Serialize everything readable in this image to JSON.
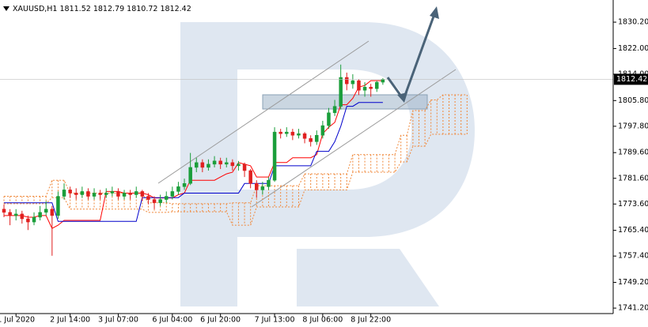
{
  "chart_data": {
    "type": "candlestick",
    "title": "XAUUSD,H1",
    "xlim": [
      -0.66,
      101.3
    ],
    "ylim": [
      1739.5,
      1837.1
    ],
    "yticks": [
      {
        "value": 1830.2,
        "label": "1830.20"
      },
      {
        "value": 1822.0,
        "label": "1822.00"
      },
      {
        "value": 1814.0,
        "label": "1814.00"
      },
      {
        "value": 1805.8,
        "label": "1805.80"
      },
      {
        "value": 1797.8,
        "label": "1797.80"
      },
      {
        "value": 1789.6,
        "label": "1789.60"
      },
      {
        "value": 1781.6,
        "label": "1781.60"
      },
      {
        "value": 1773.6,
        "label": "1773.60"
      },
      {
        "value": 1765.4,
        "label": "1765.40"
      },
      {
        "value": 1757.4,
        "label": "1757.40"
      },
      {
        "value": 1749.2,
        "label": "1749.20"
      },
      {
        "value": 1741.2,
        "label": "1741.20"
      }
    ],
    "xticks": [
      {
        "value": 2,
        "label": "1 Jul 2020"
      },
      {
        "value": 11,
        "label": "2 Jul 14:00"
      },
      {
        "value": 19,
        "label": "3 Jul 07:00"
      },
      {
        "value": 28,
        "label": "6 Jul 04:00"
      },
      {
        "value": 36,
        "label": "6 Jul 20:00"
      },
      {
        "value": 45,
        "label": "7 Jul 13:00"
      },
      {
        "value": 53,
        "label": "8 Jul 06:00"
      },
      {
        "value": 61,
        "label": "8 Jul 22:00"
      }
    ],
    "up_color": "#1a9e3a",
    "down_color": "#e02020",
    "open": [
      1772,
      1771,
      1770,
      1770.5,
      1769,
      1768,
      1769.5,
      1771,
      1772,
      1770,
      1776,
      1778,
      1777,
      1776.5,
      1777.5,
      1776,
      1777,
      1776.5,
      1777,
      1777.5,
      1776,
      1777,
      1776.5,
      1777.5,
      1776,
      1775,
      1774,
      1775,
      1776,
      1777.5,
      1779,
      1780,
      1785,
      1786.5,
      1785,
      1786,
      1787,
      1786,
      1786.5,
      1785.5,
      1786,
      1784,
      1780,
      1778,
      1779,
      1781,
      1796,
      1795.5,
      1796,
      1795,
      1795.5,
      1794,
      1793,
      1795,
      1798,
      1802,
      1804,
      1813,
      1811,
      1812,
      1809,
      1810,
      1809.5,
      1811.52
    ],
    "high": [
      1773.5,
      1772,
      1772,
      1771.5,
      1770,
      1771,
      1773,
      1774.5,
      1773,
      1777.5,
      1780,
      1779,
      1778.5,
      1779,
      1778.5,
      1778.5,
      1778,
      1778.5,
      1779,
      1778.5,
      1778,
      1778,
      1779,
      1778,
      1777,
      1776,
      1776.5,
      1777.5,
      1779,
      1780.5,
      1781.5,
      1789.5,
      1788,
      1787.5,
      1787.5,
      1788.5,
      1788,
      1788,
      1787.5,
      1787,
      1786.5,
      1784.5,
      1781,
      1780.5,
      1782,
      1797.5,
      1797,
      1797.5,
      1797,
      1797,
      1796,
      1795,
      1796.5,
      1799.5,
      1803.5,
      1806,
      1817,
      1814.5,
      1814,
      1812.5,
      1811.5,
      1811,
      1812,
      1812.79
    ],
    "low": [
      1769.5,
      1767,
      1768.5,
      1767.5,
      1765.5,
      1767,
      1768.5,
      1770,
      1757.5,
      1769,
      1775,
      1775.5,
      1775,
      1775.5,
      1775,
      1775,
      1775,
      1775.5,
      1776,
      1775,
      1775,
      1775,
      1775.5,
      1774.5,
      1773.5,
      1772,
      1773,
      1774,
      1775,
      1776.5,
      1778,
      1779.5,
      1783.5,
      1783.5,
      1784,
      1785,
      1784.5,
      1785,
      1784,
      1784,
      1782,
      1778.5,
      1775.5,
      1776.5,
      1778,
      1780.5,
      1794,
      1794.5,
      1793.5,
      1794,
      1792.5,
      1791.5,
      1792,
      1794,
      1797,
      1801,
      1803,
      1809,
      1809.5,
      1807.5,
      1807,
      1807,
      1808.5,
      1810.72
    ],
    "close": [
      1771,
      1770,
      1770.5,
      1769,
      1768,
      1769.5,
      1771,
      1772,
      1770,
      1776,
      1778,
      1777,
      1776.5,
      1777.5,
      1776,
      1777,
      1776.5,
      1777,
      1777.5,
      1776,
      1777,
      1776.5,
      1777.5,
      1776,
      1775,
      1774,
      1775,
      1776,
      1777.5,
      1779,
      1780,
      1785,
      1786.5,
      1785,
      1786,
      1787,
      1786,
      1786.5,
      1785.5,
      1786,
      1784,
      1780,
      1778,
      1779,
      1781,
      1796,
      1795.5,
      1796,
      1795,
      1795.5,
      1794,
      1793,
      1795,
      1798,
      1802,
      1804,
      1813,
      1811,
      1812,
      1809,
      1810,
      1809.5,
      1811.5,
      1812.42
    ],
    "series": [
      {
        "color": "#ff0000",
        "values": [
          1770,
          1770,
          1770,
          1770,
          1769.5,
          1769.5,
          1770,
          1770,
          1766,
          1767,
          1768.5,
          1768.5,
          1768.5,
          1768.5,
          1768.5,
          1768.5,
          1768.5,
          1777.5,
          1777.5,
          1777.5,
          1777,
          1777,
          1777,
          1777,
          1776.5,
          1775.5,
          1775.5,
          1775.5,
          1775.5,
          1776.5,
          1777,
          1781,
          1781,
          1781,
          1781,
          1781,
          1782,
          1783,
          1783.5,
          1786.5,
          1786,
          1785.5,
          1782,
          1782,
          1782,
          1786.5,
          1786.5,
          1786.5,
          1788,
          1788,
          1788,
          1788,
          1789,
          1795.5,
          1797.5,
          1799,
          1804.5,
          1804.5,
          1806.5,
          1810,
          1810.5,
          1812,
          1812,
          1812
        ]
      },
      {
        "color": "#0000cc",
        "values": [
          1774,
          1774,
          1774,
          1774,
          1774,
          1774,
          1774,
          1774,
          1774,
          1768.2,
          1768.2,
          1768.2,
          1768.2,
          1768.2,
          1768.2,
          1768.2,
          1768.2,
          1768.2,
          1768.2,
          1768.2,
          1768.2,
          1768.2,
          1768.2,
          1775.6,
          1775.6,
          1775.6,
          1775.6,
          1775.6,
          1775.6,
          1775.6,
          1777,
          1777,
          1777,
          1777,
          1777,
          1777,
          1777,
          1777,
          1777,
          1777,
          1780,
          1780,
          1780,
          1780,
          1780,
          1785.5,
          1785.5,
          1785.5,
          1785.5,
          1785.5,
          1785.5,
          1785.5,
          1790,
          1790,
          1790,
          1793,
          1797.8,
          1804,
          1804,
          1805.2,
          1805.2,
          1805.2,
          1805.2,
          1805.2
        ]
      }
    ],
    "cloud": {
      "color": "#f0883a",
      "upper": [
        1776,
        1776,
        1776,
        1776,
        1776,
        1776,
        1776,
        1776,
        1781,
        1781,
        1781,
        1777,
        1777,
        1777,
        1777,
        1777,
        1777,
        1777,
        1777,
        1777,
        1777,
        1777,
        1777,
        1777,
        1774,
        1774,
        1774,
        1774,
        1773.7,
        1773.7,
        1773.7,
        1773.7,
        1773.7,
        1773.7,
        1773.7,
        1773.7,
        1773.7,
        1773.7,
        1774,
        1774,
        1774,
        1774,
        1779.3,
        1779.3,
        1779.3,
        1779.3,
        1779.3,
        1779.3,
        1779.3,
        1779.3,
        1783,
        1783,
        1783,
        1783,
        1783,
        1783,
        1783,
        1783,
        1789,
        1789,
        1789,
        1789,
        1789,
        1789,
        1789,
        1789,
        1795,
        1795,
        1802.7,
        1802.7,
        1802.7,
        1806,
        1806,
        1807.6,
        1807.6,
        1807.6,
        1807.6,
        1807.6
      ],
      "lower": [
        1773.7,
        1773.7,
        1773.7,
        1773.7,
        1773.7,
        1773.7,
        1773.7,
        1773.7,
        1775.6,
        1775.6,
        1775.6,
        1772,
        1772,
        1772,
        1772,
        1772,
        1772,
        1772,
        1772,
        1772,
        1772,
        1772,
        1772,
        1772,
        1771,
        1771,
        1771,
        1771,
        1771.2,
        1771.2,
        1771.2,
        1771.2,
        1771.2,
        1771.2,
        1771.2,
        1771.2,
        1771.2,
        1771.2,
        1767,
        1767,
        1767,
        1767,
        1772.7,
        1772.7,
        1772.7,
        1772.7,
        1772.7,
        1772.7,
        1772.7,
        1772.7,
        1778,
        1778,
        1778,
        1778,
        1778,
        1778,
        1778,
        1778,
        1783.5,
        1783.5,
        1783.5,
        1783.5,
        1783.5,
        1783.5,
        1783.5,
        1783.5,
        1786.7,
        1786.7,
        1791.6,
        1791.6,
        1791.6,
        1795.3,
        1795.3,
        1795.3,
        1795.3,
        1795.3,
        1795.3,
        1795.3
      ]
    }
  }
}
